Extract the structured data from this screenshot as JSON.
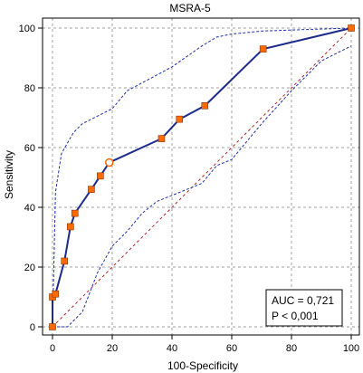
{
  "chart_data": {
    "type": "line",
    "title": "MSRA-5",
    "xlabel": "100-Specificity",
    "ylabel": "Sensitivity",
    "xlim": [
      0,
      100
    ],
    "ylim": [
      0,
      100
    ],
    "grid": true,
    "x_ticks": [
      "0",
      "20",
      "40",
      "60",
      "80",
      "100"
    ],
    "y_ticks": [
      "0",
      "20",
      "40",
      "60",
      "80",
      "100"
    ],
    "roc_curve": {
      "x": [
        0,
        0,
        1,
        4,
        6,
        7.5,
        13,
        16,
        19,
        36.5,
        42.5,
        51,
        70.5,
        100
      ],
      "y": [
        0,
        10,
        11,
        22,
        33.5,
        38,
        46,
        50.5,
        55,
        63,
        69.5,
        74,
        93,
        100
      ],
      "color": "#1c2a8c",
      "marker_color": "#ff6a00",
      "highlight_point_index": 8
    },
    "ci_upper": {
      "x": [
        0,
        1,
        3,
        7,
        10,
        20,
        25,
        40,
        50,
        55,
        60,
        70,
        85,
        100
      ],
      "y": [
        0,
        45,
        58,
        65,
        68,
        73,
        79,
        87,
        94,
        97,
        98,
        99,
        99.5,
        100
      ],
      "color": "#2030b0"
    },
    "ci_lower": {
      "x": [
        0,
        5,
        10,
        15,
        20,
        25,
        30,
        35,
        40,
        45,
        50,
        55,
        60,
        70,
        80,
        90,
        100
      ],
      "y": [
        0,
        0,
        5,
        18,
        27,
        32,
        38,
        42,
        44,
        46,
        48,
        54,
        56,
        68,
        79,
        89,
        94
      ],
      "color": "#2030b0"
    },
    "reference_line": {
      "x": [
        0,
        100
      ],
      "y": [
        0,
        100
      ],
      "color": "#b0202a"
    },
    "annotation": {
      "auc": "AUC = 0,721",
      "p": "P < 0,001"
    }
  }
}
